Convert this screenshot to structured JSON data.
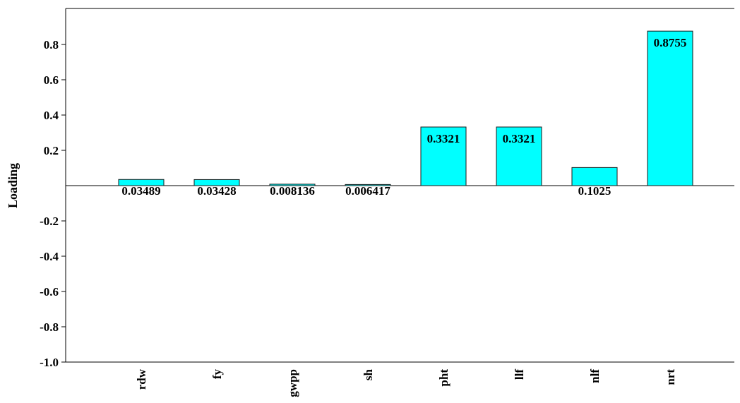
{
  "chart_data": {
    "type": "bar",
    "categories": [
      "rdw",
      "fy",
      "gwpp",
      "sh",
      "pht",
      "llf",
      "nlf",
      "nrt"
    ],
    "values": [
      0.03489,
      0.03428,
      0.008136,
      0.006417,
      0.3321,
      0.3321,
      0.1025,
      0.8755
    ],
    "data_labels": [
      "0.03489",
      "0.03428",
      "0.008136",
      "0.006417",
      "0.3321",
      "0.3321",
      "0.1025",
      "0.8755"
    ],
    "ylabel": "Loading",
    "xlabel": "",
    "ylim": [
      -1.0,
      1.0
    ],
    "yticks": [
      -1.0,
      -0.8,
      -0.6,
      -0.4,
      -0.2,
      0.2,
      0.4,
      0.6,
      0.8
    ],
    "ytick_labels": [
      "-1.0",
      "-0.8",
      "-0.6",
      "-0.4",
      "-0.2",
      "0.2",
      "0.4",
      "0.6",
      "0.8"
    ],
    "bar_color": "#00FFFF",
    "bar_edge_color": "#1a1a1a",
    "grid": false,
    "legend": false
  }
}
